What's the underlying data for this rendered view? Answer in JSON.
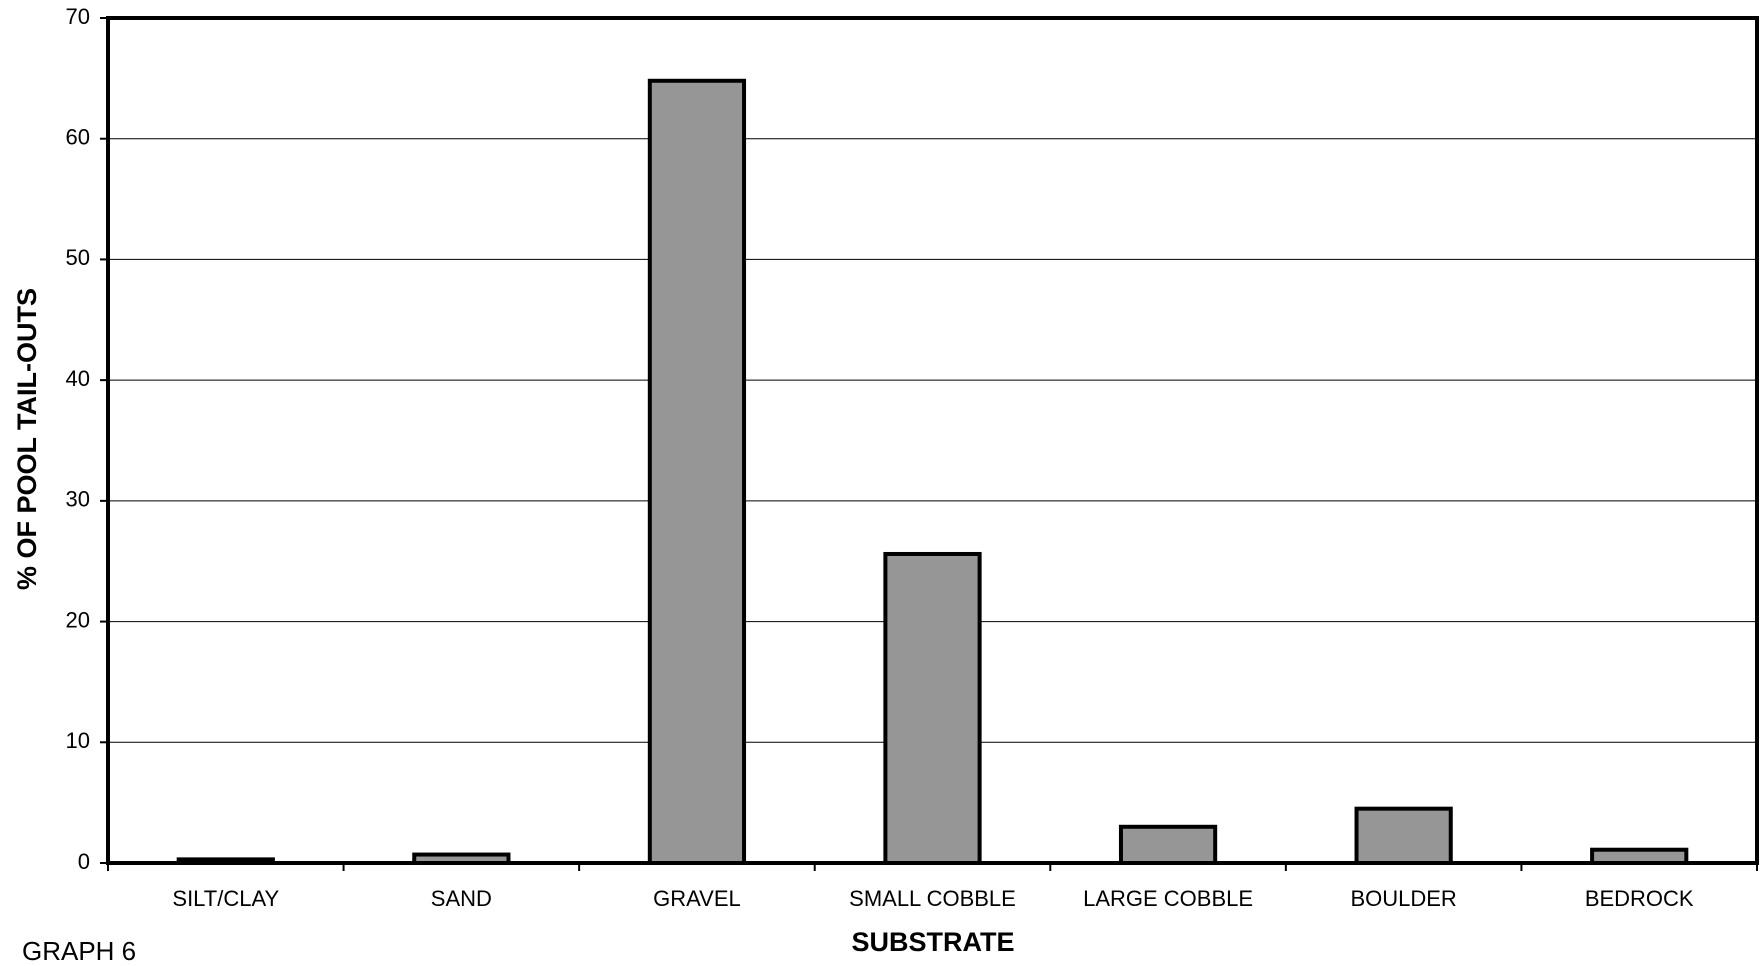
{
  "chart_data": {
    "type": "bar",
    "categories": [
      "SILT/CLAY",
      "SAND",
      "GRAVEL",
      "SMALL COBBLE",
      "LARGE COBBLE",
      "BOULDER",
      "BEDROCK"
    ],
    "values": [
      0.3,
      0.7,
      64.8,
      25.6,
      3.0,
      4.5,
      1.1
    ],
    "color": "#969696",
    "x_label": "SUBSTRATE",
    "y_label": "% OF POOL TAIL-OUTS",
    "caption": "GRAPH 6",
    "ylim": [
      0,
      70
    ],
    "yticks": [
      0,
      10,
      20,
      30,
      40,
      50,
      60,
      70
    ],
    "grid": true
  }
}
